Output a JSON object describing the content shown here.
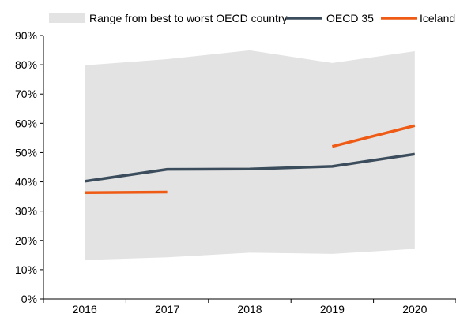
{
  "chart_data": {
    "type": "line",
    "title": "",
    "xlabel": "",
    "ylabel": "",
    "categories": [
      "2016",
      "2017",
      "2018",
      "2019",
      "2020"
    ],
    "ylim": [
      0,
      90
    ],
    "yticks": [
      0,
      10,
      20,
      30,
      40,
      50,
      60,
      70,
      80,
      90
    ],
    "ytick_labels": [
      "0%",
      "10%",
      "20%",
      "30%",
      "40%",
      "50%",
      "60%",
      "70%",
      "80%",
      "90%"
    ],
    "grid": false,
    "legend_position": "top",
    "range_band": {
      "name": "Range from best to worst OECD country",
      "color": "#e3e3e3",
      "low": [
        13.3,
        14.2,
        15.8,
        15.4,
        17.1
      ],
      "high": [
        79.8,
        81.9,
        84.9,
        80.6,
        84.6
      ]
    },
    "series": [
      {
        "name": "OECD 35",
        "color": "#3b4d5c",
        "values": [
          40.2,
          44.3,
          44.4,
          45.3,
          49.5
        ]
      },
      {
        "name": "Iceland",
        "color": "#ef5a14",
        "values": [
          36.3,
          36.5,
          null,
          52.1,
          59.2
        ]
      }
    ]
  }
}
